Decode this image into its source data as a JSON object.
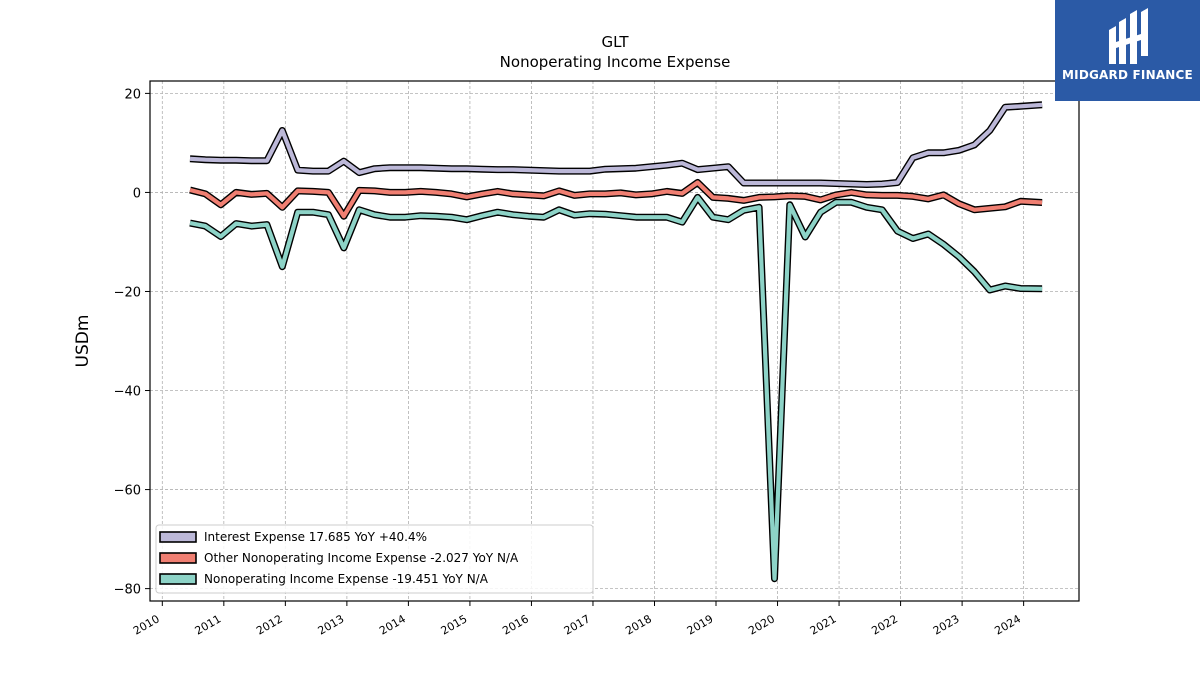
{
  "chart_data": {
    "type": "line",
    "title": "GLT",
    "subtitle": "Nonoperating Income Expense",
    "ylabel": "USDm",
    "xlabel": "",
    "ylim": [
      -82.5,
      22.5
    ],
    "xlim": [
      2009.8,
      2024.9
    ],
    "yticks": [
      20,
      0,
      -20,
      -40,
      -60,
      -80
    ],
    "ytick_labels": [
      "20",
      "0",
      "−20",
      "−40",
      "−60",
      "−80"
    ],
    "xticks": [
      2010,
      2011,
      2012,
      2013,
      2014,
      2015,
      2016,
      2017,
      2018,
      2019,
      2020,
      2021,
      2022,
      2023,
      2024
    ],
    "xtick_labels": [
      "2010",
      "2011",
      "2012",
      "2013",
      "2014",
      "2015",
      "2016",
      "2017",
      "2018",
      "2019",
      "2020",
      "2021",
      "2022",
      "2023",
      "2024"
    ],
    "grid": true,
    "legend_position": "lower-left",
    "x": [
      2010.45,
      2010.7,
      2010.95,
      2011.2,
      2011.45,
      2011.7,
      2011.95,
      2012.2,
      2012.45,
      2012.7,
      2012.95,
      2013.2,
      2013.45,
      2013.7,
      2013.95,
      2014.2,
      2014.45,
      2014.7,
      2014.95,
      2015.2,
      2015.45,
      2015.7,
      2015.95,
      2016.2,
      2016.45,
      2016.7,
      2016.95,
      2017.2,
      2017.45,
      2017.7,
      2017.95,
      2018.2,
      2018.45,
      2018.7,
      2018.95,
      2019.2,
      2019.45,
      2019.7,
      2019.95,
      2020.2,
      2020.45,
      2020.7,
      2020.95,
      2021.2,
      2021.45,
      2021.7,
      2021.95,
      2022.2,
      2022.45,
      2022.7,
      2022.95,
      2023.2,
      2023.45,
      2023.7,
      2023.95,
      2024.3
    ],
    "series": [
      {
        "name": "Interest Expense",
        "legend": "Interest Expense  17.685 YoY +40.4%",
        "color": "#bcb8d8",
        "values": [
          6.8,
          6.6,
          6.5,
          6.5,
          6.4,
          6.4,
          12.5,
          4.5,
          4.3,
          4.3,
          6.3,
          4.0,
          4.8,
          5.0,
          5.0,
          5.0,
          4.9,
          4.8,
          4.8,
          4.7,
          4.6,
          4.6,
          4.5,
          4.4,
          4.3,
          4.3,
          4.3,
          4.7,
          4.8,
          4.9,
          5.2,
          5.5,
          5.9,
          4.6,
          4.9,
          5.2,
          1.9,
          1.9,
          1.9,
          1.9,
          1.9,
          1.9,
          1.8,
          1.7,
          1.6,
          1.7,
          2.0,
          7.0,
          8.0,
          8.0,
          8.5,
          9.6,
          12.5,
          17.2,
          17.4,
          17.685
        ]
      },
      {
        "name": "Other Nonoperating Income Expense",
        "legend": "Other Nonoperating Income Expense  -2.027 YoY N/A",
        "color": "#f07f72",
        "values": [
          0.5,
          -0.3,
          -2.5,
          0.0,
          -0.4,
          -0.2,
          -3.0,
          0.3,
          0.2,
          0.0,
          -4.8,
          0.4,
          0.3,
          0.0,
          0.0,
          0.2,
          0.0,
          -0.3,
          -0.9,
          -0.3,
          0.2,
          -0.3,
          -0.5,
          -0.7,
          0.3,
          -0.6,
          -0.3,
          -0.3,
          -0.1,
          -0.5,
          -0.3,
          0.2,
          -0.2,
          2.0,
          -1.0,
          -1.2,
          -1.6,
          -1.0,
          -0.9,
          -0.7,
          -0.8,
          -1.5,
          -0.5,
          0.0,
          -0.5,
          -0.6,
          -0.6,
          -0.8,
          -1.3,
          -0.5,
          -2.3,
          -3.5,
          -3.2,
          -2.9,
          -1.8,
          -2.027
        ]
      },
      {
        "name": "Nonoperating Income Expense",
        "legend": "Nonoperating Income Expense  -19.451 YoY N/A",
        "color": "#8dd3c7",
        "values": [
          -6.2,
          -6.8,
          -8.9,
          -6.3,
          -6.8,
          -6.5,
          -15.0,
          -4.0,
          -4.0,
          -4.5,
          -11.2,
          -3.5,
          -4.5,
          -5.0,
          -5.0,
          -4.7,
          -4.8,
          -5.0,
          -5.5,
          -4.7,
          -4.0,
          -4.5,
          -4.8,
          -5.0,
          -3.5,
          -4.6,
          -4.3,
          -4.4,
          -4.7,
          -5.0,
          -5.0,
          -5.0,
          -6.0,
          -1.0,
          -5.0,
          -5.5,
          -3.6,
          -3.0,
          -78.0,
          -2.5,
          -9.0,
          -4.0,
          -2.0,
          -2.0,
          -3.0,
          -3.5,
          -7.8,
          -9.3,
          -8.4,
          -10.5,
          -13.0,
          -16.0,
          -19.7,
          -18.9,
          -19.4,
          -19.451
        ]
      }
    ]
  },
  "logo": {
    "text": "MIDGARD FINANCE",
    "bg_color": "#2b5aa6",
    "icon": "midgard-logo-icon"
  }
}
